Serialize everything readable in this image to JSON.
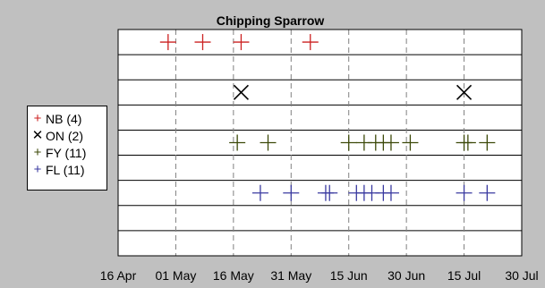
{
  "chart_data": {
    "type": "scatter",
    "title": "Chipping Sparrow",
    "xlabel": "",
    "ylabel": "",
    "x_axis_type": "date",
    "xlim": [
      "2000-04-16",
      "2000-07-30"
    ],
    "x_tick_values": [
      "2000-04-16",
      "2000-05-01",
      "2000-05-16",
      "2000-05-31",
      "2000-06-15",
      "2000-06-30",
      "2000-07-15",
      "2000-07-30"
    ],
    "x_tick_labels": [
      "16 Apr",
      "01 May",
      "16 May",
      "31 May",
      "15 Jun",
      "30 Jun",
      "15 Jul",
      "30 Jul"
    ],
    "grid": true,
    "legend_position": "left",
    "series": [
      {
        "name": "NB (4)",
        "marker": "plus",
        "color": "#cc2222",
        "row": 1,
        "x": [
          "2000-04-29",
          "2000-05-08",
          "2000-05-18",
          "2000-06-05"
        ]
      },
      {
        "name": "ON (2)",
        "marker": "x",
        "color": "#000000",
        "row": 3,
        "x": [
          "2000-05-18",
          "2000-07-15"
        ]
      },
      {
        "name": "FY (11)",
        "marker": "plus",
        "color": "#3d4a0a",
        "row": 5,
        "x": [
          "2000-05-17",
          "2000-05-25",
          "2000-06-15",
          "2000-06-19",
          "2000-06-22",
          "2000-06-24",
          "2000-06-26",
          "2000-07-01",
          "2000-07-15",
          "2000-07-16",
          "2000-07-21"
        ]
      },
      {
        "name": "FL (11)",
        "marker": "plus",
        "color": "#3a3aa0",
        "row": 7,
        "x": [
          "2000-05-23",
          "2000-05-31",
          "2000-06-09",
          "2000-06-10",
          "2000-06-17",
          "2000-06-19",
          "2000-06-21",
          "2000-06-24",
          "2000-06-26",
          "2000-07-15",
          "2000-07-21"
        ]
      }
    ]
  }
}
